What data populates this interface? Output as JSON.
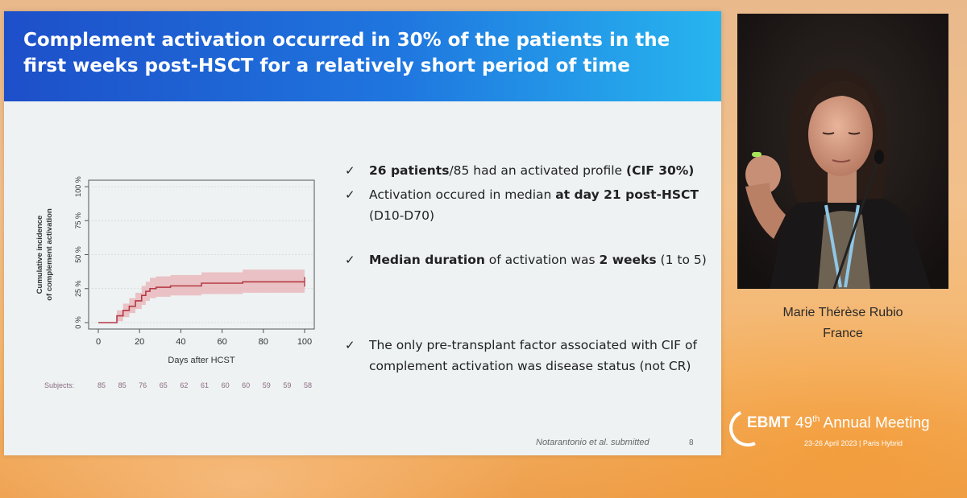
{
  "slide": {
    "title_line1": "Complement activation occurred in 30% of the patients in the",
    "title_line2": "first weeks post-HSCT for a relatively short period of time",
    "bullets": [
      {
        "bold": "26 patients",
        "text": "/85 had an activated profile ",
        "bold2": "(CIF 30%)"
      },
      {
        "pre": "Activation occured  in median ",
        "bold": "at day 21 post-HSCT",
        "line2": "(D10-D70)"
      },
      {
        "bold": "Median duration",
        "text": " of activation was ",
        "bold2": "2 weeks",
        "post": " (1 to 5)"
      },
      {
        "line1": "The only pre-transplant factor associated with CIF of",
        "line2": "complement activation was disease status (not CR)"
      }
    ],
    "check_glyph": "✓",
    "citation": "Notarantonio et al. submitted",
    "page_number": "8"
  },
  "chart_data": {
    "type": "line",
    "xlabel": "Days after HCST",
    "ylabel_line1": "Cumulative incidence",
    "ylabel_line2": "of complement activation",
    "xlim": [
      0,
      100
    ],
    "ylim": [
      0,
      100
    ],
    "x_ticks": [
      "0",
      "20",
      "40",
      "60",
      "80",
      "100"
    ],
    "y_ticks": [
      "0 %",
      "25 %",
      "50 %",
      "75 %",
      "100 %"
    ],
    "series": [
      {
        "x": [
          0,
          9,
          9,
          12,
          12,
          15,
          15,
          18,
          18,
          21,
          21,
          23,
          23,
          25,
          25,
          28,
          28,
          35,
          35,
          50,
          50,
          70,
          70,
          100
        ],
        "y": [
          0,
          0,
          5,
          5,
          9,
          9,
          12,
          12,
          16,
          16,
          20,
          20,
          23,
          23,
          25,
          25,
          26,
          26,
          27,
          27,
          29,
          29,
          30,
          30
        ],
        "lower": [
          0,
          0,
          1,
          1,
          4,
          4,
          7,
          7,
          10,
          10,
          13,
          13,
          16,
          16,
          18,
          18,
          19,
          19,
          20,
          20,
          21,
          21,
          22,
          22
        ],
        "upper": [
          0,
          0,
          9,
          9,
          14,
          14,
          18,
          18,
          22,
          22,
          27,
          27,
          30,
          30,
          33,
          33,
          34,
          34,
          35,
          35,
          37,
          37,
          39,
          39
        ]
      }
    ],
    "subjects_label": "Subjects:",
    "subjects_x": [
      0,
      10,
      20,
      30,
      40,
      50,
      60,
      70,
      80,
      90,
      100
    ],
    "subjects": [
      "85",
      "85",
      "76",
      "65",
      "62",
      "61",
      "60",
      "60",
      "59",
      "59",
      "58"
    ],
    "colors": {
      "line": "#b43a45",
      "band": "#e9b4b8",
      "axis": "#555555",
      "grid": "#cfd6d8"
    }
  },
  "speaker": {
    "name": "Marie Thérèse Rubio",
    "country": "France"
  },
  "logo": {
    "brand": "EBMT",
    "meeting_num": "49",
    "meeting_sup": "th",
    "meeting_text": " Annual Meeting",
    "dates": "23-26 April 2023  |  Paris Hybrid"
  }
}
